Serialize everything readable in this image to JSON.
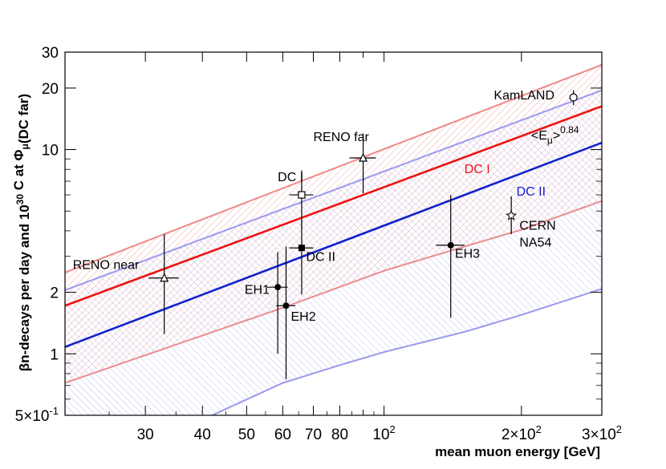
{
  "chart_data": {
    "type": "scatter",
    "x_scale": "log",
    "y_scale": "log",
    "xlim": [
      20,
      300
    ],
    "ylim": [
      0.5,
      30
    ],
    "xlabel": "mean muon energy [GeV]",
    "ylabel": "βn-decays per day and 10^30 C at Φμ(DC far)",
    "x_ticks": [
      {
        "value": 30,
        "label": "30"
      },
      {
        "value": 40,
        "label": "40"
      },
      {
        "value": 50,
        "label": "50"
      },
      {
        "value": 60,
        "label": "60"
      },
      {
        "value": 70,
        "label": "70"
      },
      {
        "value": 80,
        "label": "80"
      },
      {
        "value": 100,
        "label": "10",
        "sup": "2"
      },
      {
        "value": 200,
        "label": "2×10",
        "sup": "2"
      },
      {
        "value": 300,
        "label": "3×10",
        "sup": "2"
      }
    ],
    "y_ticks": [
      {
        "value": 0.5,
        "label": "5×10",
        "sup": "-1"
      },
      {
        "value": 1,
        "label": "1"
      },
      {
        "value": 2,
        "label": "2"
      },
      {
        "value": 10,
        "label": "10"
      },
      {
        "value": 20,
        "label": "20"
      },
      {
        "value": 30,
        "label": "30"
      }
    ],
    "fit_lines": [
      {
        "name": "DC I",
        "color": "#ee1111",
        "x": [
          20,
          300
        ],
        "y": [
          1.72,
          16.3
        ],
        "label_at": [
          150,
          7.65
        ]
      },
      {
        "name": "DC II",
        "color": "#1122cc",
        "x": [
          20,
          300
        ],
        "y": [
          1.08,
          10.8
        ],
        "label_at": [
          195,
          5.95
        ]
      }
    ],
    "bands": [
      {
        "name": "DC I band",
        "color": "#ee8888",
        "upper": {
          "x": [
            20,
            300
          ],
          "y": [
            2.5,
            26
          ]
        },
        "lower": {
          "x": [
            20,
            60,
            100,
            150,
            200,
            300
          ],
          "y": [
            0.72,
            1.68,
            2.55,
            3.35,
            4.05,
            5.6
          ]
        }
      },
      {
        "name": "DC II band",
        "color": "#9999ee",
        "upper": {
          "x": [
            20,
            300
          ],
          "y": [
            2.05,
            19.5
          ]
        },
        "lower": {
          "x": [
            42,
            60,
            80,
            100,
            150,
            200,
            300
          ],
          "y": [
            0.5,
            0.72,
            0.88,
            1.02,
            1.28,
            1.55,
            2.08
          ]
        }
      }
    ],
    "annotation": {
      "text": "<E",
      "sub": "μ",
      "tail": ">",
      "sup": "0.84",
      "at": [
        210,
        11.2
      ]
    },
    "points": [
      {
        "name": "RENO near",
        "marker": "open-triangle",
        "x": 33,
        "y": 2.35,
        "ylo": 1.25,
        "yhi": 3.85,
        "xerr": 2.5,
        "label_at": [
          20.8,
          2.6
        ]
      },
      {
        "name": "RENO far",
        "marker": "open-triangle",
        "x": 90,
        "y": 9.1,
        "ylo": 6.1,
        "yhi": 12.0,
        "xerr": 6,
        "label_at": [
          70,
          11.0
        ]
      },
      {
        "name": "DC I",
        "marker": "open-square",
        "x": 66,
        "y": 6.0,
        "ylo": 4.1,
        "yhi": 7.9,
        "xerr": 4,
        "label_at": [
          58.5,
          7.0
        ]
      },
      {
        "name": "DC II",
        "marker": "filled-square",
        "x": 66,
        "y": 3.3,
        "ylo": 1.95,
        "yhi": 4.6,
        "xerr": 4,
        "label_at": [
          67.5,
          2.85
        ]
      },
      {
        "name": "EH1",
        "marker": "filled-circle",
        "x": 58.5,
        "y": 2.12,
        "ylo": 1.0,
        "yhi": 3.15,
        "xerr": 3,
        "label_at": [
          49.5,
          1.97
        ]
      },
      {
        "name": "EH2",
        "marker": "filled-circle",
        "x": 61,
        "y": 1.72,
        "ylo": 0.75,
        "yhi": 3.35,
        "xerr": 3,
        "label_at": [
          62.5,
          1.45
        ]
      },
      {
        "name": "EH3",
        "marker": "filled-circle",
        "x": 140,
        "y": 3.4,
        "ylo": 1.5,
        "yhi": 6.0,
        "xerr": 10,
        "label_at": [
          143,
          2.95
        ]
      },
      {
        "name": "CERN NA54",
        "label_lines": [
          "CERN",
          "NA54"
        ],
        "marker": "open-star",
        "x": 190,
        "y": 4.75,
        "ylo": 3.85,
        "yhi": 5.9,
        "xerr": 0,
        "label_at": [
          198,
          4.05
        ]
      },
      {
        "name": "KamLAND",
        "marker": "open-circle",
        "x": 260,
        "y": 18.0,
        "ylo": 16.5,
        "yhi": 19.5,
        "xerr": 0,
        "label_at": [
          174,
          17.6
        ]
      }
    ]
  }
}
